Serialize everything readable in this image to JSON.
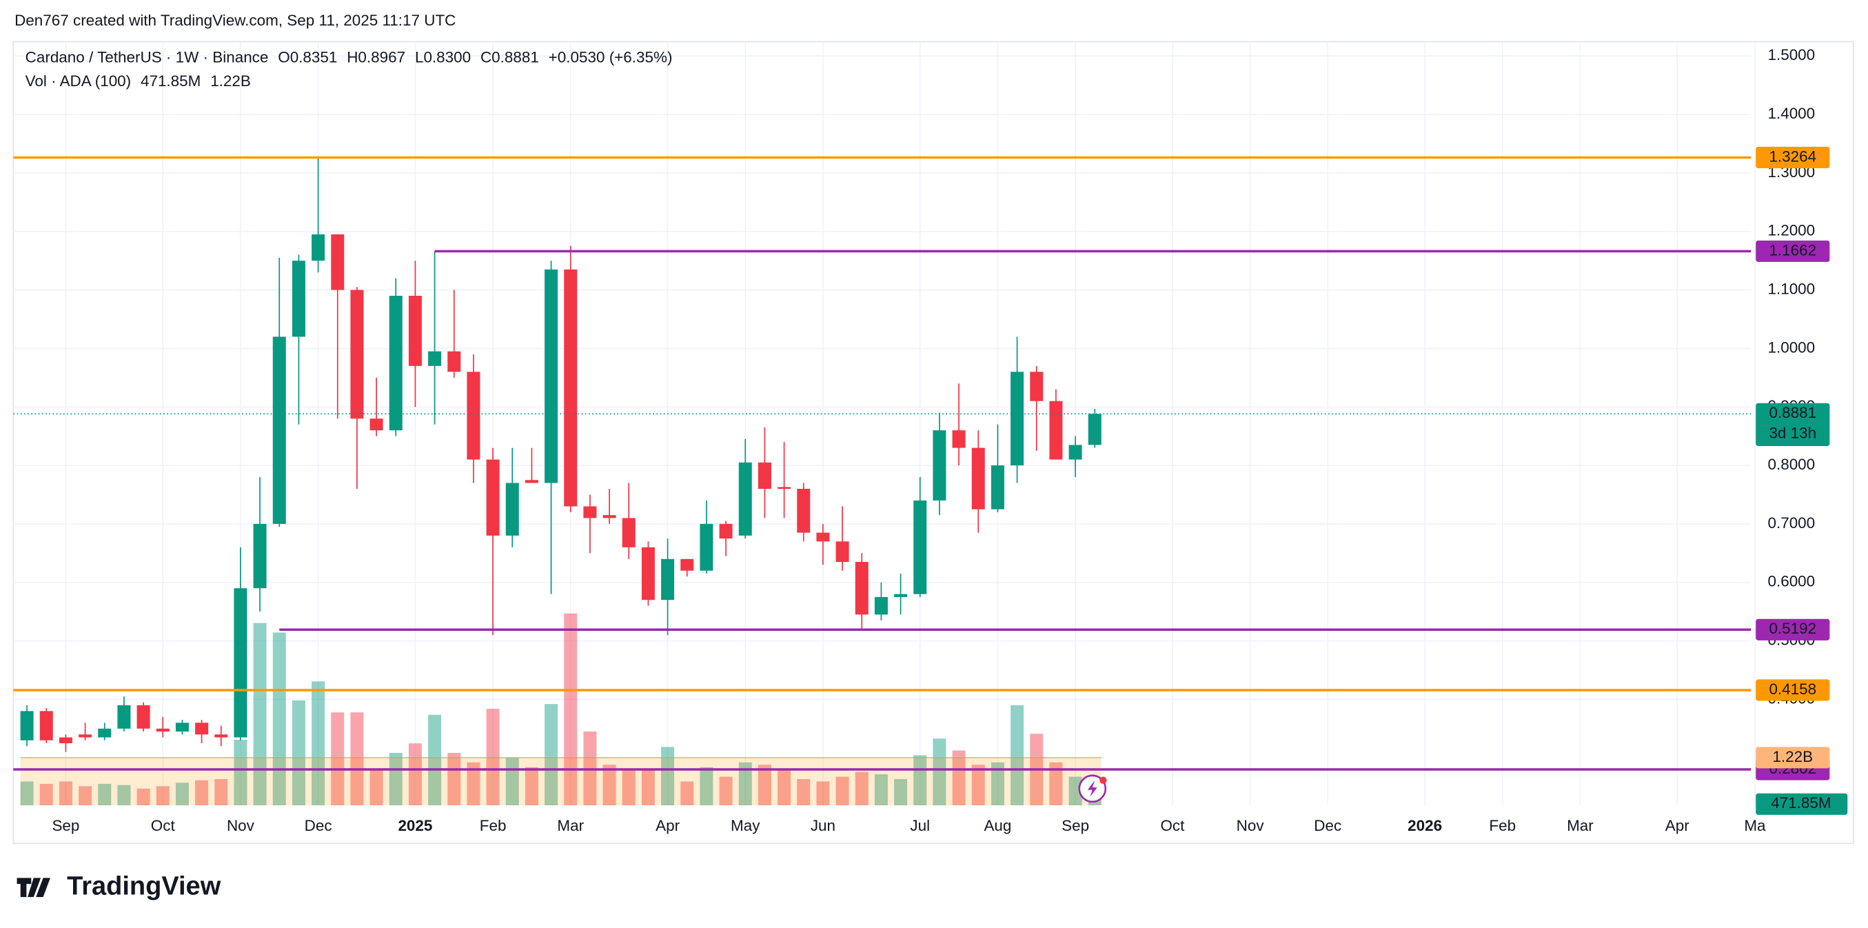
{
  "attribution": "Den767 created with TradingView.com, Sep 11, 2025 11:17 UTC",
  "brand": "TradingView",
  "chart_data": {
    "type": "candlestick",
    "title": "Cardano / TetherUS · 1W · Binance",
    "legend": {
      "o_label": "O",
      "o": "0.8351",
      "h_label": "H",
      "h": "0.8967",
      "l_label": "L",
      "l": "0.8300",
      "c_label": "C",
      "c": "0.8881",
      "change": "+0.0530 (+6.35%)"
    },
    "countdown": "3d 13h",
    "open": [
      0.33,
      0.38,
      0.335,
      0.34,
      0.335,
      0.35,
      0.39,
      0.35,
      0.345,
      0.36,
      0.34,
      0.335,
      0.59,
      0.7,
      1.02,
      1.15,
      1.195,
      1.1,
      0.88,
      0.86,
      1.09,
      0.97,
      0.995,
      0.96,
      0.81,
      0.68,
      0.775,
      0.77,
      1.135,
      0.73,
      0.715,
      0.71,
      0.66,
      0.57,
      0.64,
      0.62,
      0.7,
      0.68,
      0.805,
      0.763,
      0.76,
      0.685,
      0.67,
      0.635,
      0.545,
      0.575,
      0.58,
      0.74,
      0.86,
      0.83,
      0.725,
      0.8,
      0.96,
      0.91,
      0.81,
      0.8351
    ],
    "high": [
      0.39,
      0.385,
      0.34,
      0.36,
      0.36,
      0.405,
      0.395,
      0.37,
      0.365,
      0.365,
      0.355,
      0.66,
      0.78,
      1.155,
      1.16,
      1.326,
      1.195,
      1.105,
      0.95,
      1.12,
      1.15,
      1.166,
      1.1,
      0.99,
      0.83,
      0.83,
      0.83,
      1.15,
      1.175,
      0.75,
      0.76,
      0.77,
      0.67,
      0.675,
      0.64,
      0.74,
      0.705,
      0.845,
      0.865,
      0.84,
      0.77,
      0.7,
      0.73,
      0.65,
      0.6,
      0.615,
      0.78,
      0.89,
      0.94,
      0.86,
      0.87,
      1.02,
      0.97,
      0.93,
      0.85,
      0.8967
    ],
    "low": [
      0.32,
      0.325,
      0.31,
      0.33,
      0.33,
      0.345,
      0.345,
      0.335,
      0.34,
      0.325,
      0.32,
      0.33,
      0.55,
      0.695,
      0.87,
      1.13,
      0.88,
      0.76,
      0.85,
      0.85,
      0.9,
      0.87,
      0.95,
      0.77,
      0.51,
      0.66,
      0.77,
      0.58,
      0.72,
      0.65,
      0.7,
      0.64,
      0.56,
      0.51,
      0.61,
      0.615,
      0.645,
      0.675,
      0.71,
      0.71,
      0.67,
      0.63,
      0.62,
      0.52,
      0.535,
      0.545,
      0.575,
      0.715,
      0.8,
      0.685,
      0.72,
      0.77,
      0.825,
      0.81,
      0.78,
      0.83
    ],
    "close": [
      0.38,
      0.33,
      0.325,
      0.335,
      0.35,
      0.39,
      0.35,
      0.345,
      0.36,
      0.34,
      0.335,
      0.59,
      0.7,
      1.02,
      1.15,
      1.195,
      1.1,
      0.88,
      0.86,
      1.09,
      0.97,
      0.995,
      0.96,
      0.81,
      0.68,
      0.77,
      0.77,
      1.135,
      0.73,
      0.71,
      0.71,
      0.66,
      0.57,
      0.64,
      0.62,
      0.7,
      0.675,
      0.805,
      0.76,
      0.76,
      0.685,
      0.67,
      0.635,
      0.545,
      0.575,
      0.58,
      0.74,
      0.86,
      0.83,
      0.725,
      0.8,
      0.96,
      0.91,
      0.81,
      0.835,
      0.8881
    ],
    "up_color": "#089981",
    "down_color": "#f23645",
    "xlim": [
      -0.7,
      88.8
    ],
    "xticks": [
      {
        "value": 2,
        "label": "Sep"
      },
      {
        "value": 7,
        "label": "Oct"
      },
      {
        "value": 11,
        "label": "Nov"
      },
      {
        "value": 15,
        "label": "Dec"
      },
      {
        "value": 20,
        "label": "2025"
      },
      {
        "value": 24,
        "label": "Feb"
      },
      {
        "value": 28,
        "label": "Mar"
      },
      {
        "value": 33,
        "label": "Apr"
      },
      {
        "value": 37,
        "label": "May"
      },
      {
        "value": 41,
        "label": "Jun"
      },
      {
        "value": 46,
        "label": "Jul"
      },
      {
        "value": 50,
        "label": "Aug"
      },
      {
        "value": 54,
        "label": "Sep"
      },
      {
        "value": 59,
        "label": "Oct"
      },
      {
        "value": 63,
        "label": "Nov"
      },
      {
        "value": 67,
        "label": "Dec"
      },
      {
        "value": 72,
        "label": "2026"
      },
      {
        "value": 76,
        "label": "Feb"
      },
      {
        "value": 80,
        "label": "Mar"
      },
      {
        "value": 85,
        "label": "Apr"
      },
      {
        "value": 89,
        "label": "Ma"
      }
    ],
    "ylim": [
      0.2189,
      1.5244
    ],
    "yticks": [
      {
        "value": 0.4,
        "label": "0.4000"
      },
      {
        "value": 0.5,
        "label": "0.5000"
      },
      {
        "value": 0.6,
        "label": "0.6000"
      },
      {
        "value": 0.7,
        "label": "0.7000"
      },
      {
        "value": 0.8,
        "label": "0.8000"
      },
      {
        "value": 0.9,
        "label": "0.9000"
      },
      {
        "value": 1.0,
        "label": "1.0000"
      },
      {
        "value": 1.1,
        "label": "1.1000"
      },
      {
        "value": 1.2,
        "label": "1.2000"
      },
      {
        "value": 1.3,
        "label": "1.3000"
      },
      {
        "value": 1.4,
        "label": "1.4000"
      },
      {
        "value": 1.5,
        "label": "1.5000"
      }
    ],
    "grid": true,
    "y2lim": [
      0,
      19540000000
    ],
    "volume": {
      "name": "Vol · ADA (100)",
      "axis": "y2",
      "values": [
        610000000,
        549000000,
        610000000,
        488000000,
        549000000,
        518000000,
        427000000,
        488000000,
        579000000,
        640000000,
        671000000,
        1677000000,
        4665000000,
        4421000000,
        2683000000,
        3171000000,
        2378000000,
        2378000000,
        945000000,
        1342000000,
        1585000000,
        2317000000,
        1342000000,
        1098000000,
        2470000000,
        1220000000,
        976000000,
        2592000000,
        4909000000,
        1890000000,
        1037000000,
        915000000,
        915000000,
        1494000000,
        610000000,
        976000000,
        732000000,
        1098000000,
        1037000000,
        915000000,
        671000000,
        610000000,
        732000000,
        854000000,
        793000000,
        671000000,
        1281000000,
        1707000000,
        1403000000,
        1037000000,
        1098000000,
        2561000000,
        1830000000,
        1098000000,
        732000000,
        471850000
      ],
      "value_labels": [
        null,
        null,
        null,
        null,
        null,
        null,
        null,
        null,
        null,
        null,
        null,
        null,
        null,
        null,
        null,
        null,
        null,
        null,
        null,
        null,
        null,
        null,
        null,
        null,
        null,
        null,
        null,
        null,
        null,
        null,
        null,
        null,
        null,
        null,
        null,
        null,
        null,
        null,
        null,
        null,
        null,
        null,
        null,
        null,
        null,
        null,
        null,
        null,
        null,
        null,
        null,
        null,
        null,
        null,
        null,
        "471.85M"
      ],
      "ma": {
        "value": 1220000000,
        "label": "1.22B",
        "color": "#ff9800"
      }
    },
    "levels": [
      {
        "value": 1.3264,
        "color": "#ff9800"
      },
      {
        "value": 1.1662,
        "color": "#9c27b0",
        "start": 21
      },
      {
        "value": 0.5192,
        "color": "#9c27b0",
        "start": 13
      },
      {
        "value": 0.4158,
        "color": "#ff9800"
      },
      {
        "value": 0.2802,
        "color": "#9c27b0"
      }
    ]
  }
}
